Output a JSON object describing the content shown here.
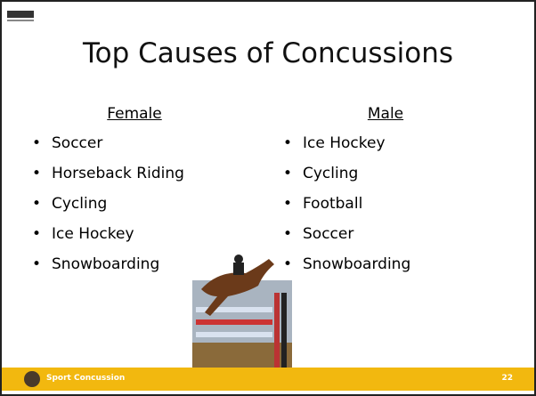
{
  "slide": {
    "title": "Top Causes of Concussions",
    "columns": [
      {
        "heading": "Female",
        "items": [
          "Soccer",
          "Horseback Riding",
          "Cycling",
          "Ice Hockey",
          "Snowboarding"
        ]
      },
      {
        "heading": "Male",
        "items": [
          "Ice Hockey",
          "Cycling",
          "Football",
          "Soccer",
          "Snowboarding"
        ]
      }
    ],
    "footer": {
      "label": "Sport Concussion",
      "page_number": "22"
    }
  }
}
